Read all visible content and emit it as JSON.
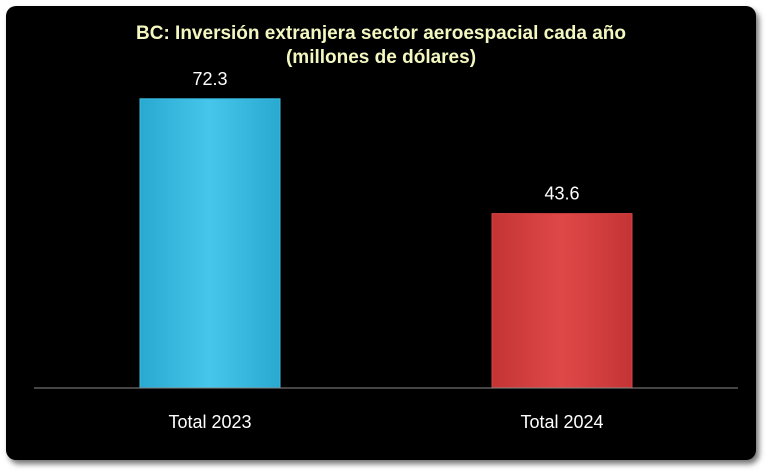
{
  "chart_data": {
    "type": "bar",
    "title_line1": "BC: Inversión extranjera sector aeroespacial cada año",
    "title_line2": "(millones de dólares)",
    "categories": [
      "Total 2023",
      "Total 2024"
    ],
    "values": [
      72.3,
      43.6
    ],
    "value_labels": [
      "72.3",
      "43.6"
    ],
    "colors": [
      "#3bbfe3",
      "#d94444"
    ],
    "xlabel": "",
    "ylabel": "",
    "ylim": [
      0,
      80
    ],
    "grid": false,
    "legend": "none"
  }
}
